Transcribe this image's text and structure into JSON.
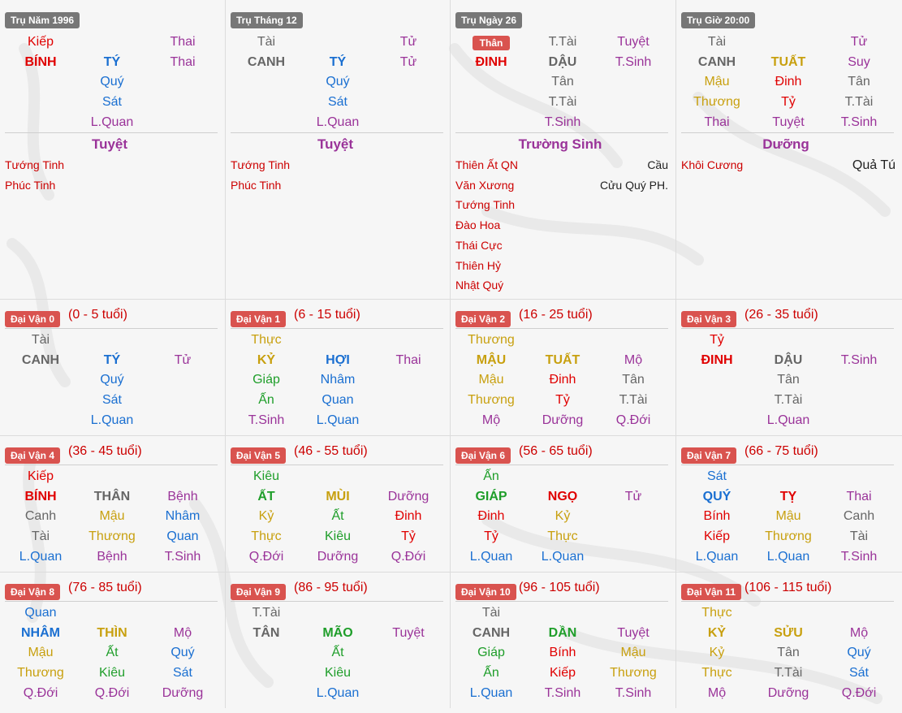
{
  "colors": {
    "red": "#e00000",
    "blue": "#1a6fd1",
    "purple": "#9a3399",
    "gray": "#666666",
    "gold": "#c8a00f",
    "green": "#1f9e2a",
    "badge_gray": "#777777",
    "badge_red": "#d9534f"
  },
  "pillars": [
    {
      "badge": "Trụ Năm 1996",
      "rows": [
        [
          "Kiếp",
          "",
          "Thai"
        ],
        [
          "BÍNH",
          "TÝ",
          "Thai"
        ],
        [
          "",
          "Quý",
          ""
        ],
        [
          "",
          "Sát",
          ""
        ],
        [
          "",
          "L.Quan",
          ""
        ]
      ],
      "colors": [
        [
          "red",
          "",
          "purple"
        ],
        [
          "red",
          "blue",
          "purple"
        ],
        [
          "",
          "blue",
          ""
        ],
        [
          "",
          "blue",
          ""
        ],
        [
          "",
          "purple",
          ""
        ]
      ],
      "truong_sinh": "Tuyệt",
      "stars_left": [
        "Tướng Tinh",
        "Phúc Tinh"
      ],
      "stars_right": []
    },
    {
      "badge": "Trụ Tháng 12",
      "rows": [
        [
          "Tài",
          "",
          "Tử"
        ],
        [
          "CANH",
          "TÝ",
          "Tử"
        ],
        [
          "",
          "Quý",
          ""
        ],
        [
          "",
          "Sát",
          ""
        ],
        [
          "",
          "L.Quan",
          ""
        ]
      ],
      "colors": [
        [
          "gray",
          "",
          "purple"
        ],
        [
          "gray",
          "blue",
          "purple"
        ],
        [
          "",
          "blue",
          ""
        ],
        [
          "",
          "blue",
          ""
        ],
        [
          "",
          "purple",
          ""
        ]
      ],
      "truong_sinh": "Tuyệt",
      "stars_left": [
        "Tướng Tinh",
        "Phúc Tinh"
      ],
      "stars_right": []
    },
    {
      "badge": "Trụ Ngày 26",
      "than_label": "Thân",
      "rows": [
        [
          "",
          "T.Tài",
          "Tuyệt"
        ],
        [
          "ĐINH",
          "DẬU",
          "T.Sinh"
        ],
        [
          "",
          "Tân",
          ""
        ],
        [
          "",
          "T.Tài",
          ""
        ],
        [
          "",
          "T.Sinh",
          ""
        ]
      ],
      "colors": [
        [
          "",
          "gray",
          "purple"
        ],
        [
          "red",
          "gray",
          "purple"
        ],
        [
          "",
          "gray",
          ""
        ],
        [
          "",
          "gray",
          ""
        ],
        [
          "",
          "purple",
          ""
        ]
      ],
      "truong_sinh": "Trường Sinh",
      "stars_left": [
        "Thiên Ất QN",
        "Văn Xương",
        "Tướng Tinh",
        "Đào Hoa",
        "Thái Cực",
        "Thiên Hỷ",
        "Nhật Quý"
      ],
      "stars_right": [
        "Cầu",
        "Cửu Quý PH."
      ]
    },
    {
      "badge": "Trụ Giờ 20:00",
      "rows": [
        [
          "Tài",
          "",
          "Tử"
        ],
        [
          "CANH",
          "TUẤT",
          "Suy"
        ],
        [
          "Mậu",
          "Đinh",
          "Tân"
        ],
        [
          "Thương",
          "Tỷ",
          "T.Tài"
        ],
        [
          "Thai",
          "Tuyệt",
          "T.Sinh"
        ]
      ],
      "colors": [
        [
          "gray",
          "",
          "purple"
        ],
        [
          "gray",
          "gold",
          "purple"
        ],
        [
          "gold",
          "red",
          "gray"
        ],
        [
          "gold",
          "red",
          "gray"
        ],
        [
          "purple",
          "purple",
          "purple"
        ]
      ],
      "truong_sinh": "Dưỡng",
      "stars_left": [
        "Khôi Cương"
      ],
      "stars_right": [
        "Quả Tú"
      ]
    }
  ],
  "dai_van": [
    {
      "badge": "Đại Vận 0",
      "range": "(0 - 5 tuổi)",
      "rows": [
        [
          "Tài",
          "",
          ""
        ],
        [
          "CANH",
          "TÝ",
          "Tử"
        ],
        [
          "",
          "Quý",
          ""
        ],
        [
          "",
          "Sát",
          ""
        ],
        [
          "",
          "L.Quan",
          ""
        ]
      ],
      "colors": [
        [
          "gray",
          "",
          ""
        ],
        [
          "gray",
          "blue",
          "purple"
        ],
        [
          "",
          "blue",
          ""
        ],
        [
          "",
          "blue",
          ""
        ],
        [
          "",
          "blue",
          ""
        ]
      ]
    },
    {
      "badge": "Đại Vận 1",
      "range": "(6 - 15 tuổi)",
      "rows": [
        [
          "Thực",
          "",
          ""
        ],
        [
          "KỶ",
          "HỢI",
          "Thai"
        ],
        [
          "Giáp",
          "Nhâm",
          ""
        ],
        [
          "Ấn",
          "Quan",
          ""
        ],
        [
          "T.Sinh",
          "L.Quan",
          ""
        ]
      ],
      "colors": [
        [
          "gold",
          "",
          ""
        ],
        [
          "gold",
          "blue",
          "purple"
        ],
        [
          "green",
          "blue",
          ""
        ],
        [
          "green",
          "blue",
          ""
        ],
        [
          "purple",
          "blue",
          ""
        ]
      ]
    },
    {
      "badge": "Đại Vận 2",
      "range": "(16 - 25 tuổi)",
      "rows": [
        [
          "Thương",
          "",
          ""
        ],
        [
          "MẬU",
          "TUẤT",
          "Mộ"
        ],
        [
          "Mậu",
          "Đinh",
          "Tân"
        ],
        [
          "Thương",
          "Tỷ",
          "T.Tài"
        ],
        [
          "Mộ",
          "Dưỡng",
          "Q.Đới"
        ]
      ],
      "colors": [
        [
          "gold",
          "",
          ""
        ],
        [
          "gold",
          "gold",
          "purple"
        ],
        [
          "gold",
          "red",
          "gray"
        ],
        [
          "gold",
          "red",
          "gray"
        ],
        [
          "purple",
          "purple",
          "purple"
        ]
      ]
    },
    {
      "badge": "Đại Vận 3",
      "range": "(26 - 35 tuổi)",
      "rows": [
        [
          "Tỷ",
          "",
          ""
        ],
        [
          "ĐINH",
          "DẬU",
          "T.Sinh"
        ],
        [
          "",
          "Tân",
          ""
        ],
        [
          "",
          "T.Tài",
          ""
        ],
        [
          "",
          "L.Quan",
          ""
        ]
      ],
      "colors": [
        [
          "red",
          "",
          ""
        ],
        [
          "red",
          "gray",
          "purple"
        ],
        [
          "",
          "gray",
          ""
        ],
        [
          "",
          "gray",
          ""
        ],
        [
          "",
          "purple",
          ""
        ]
      ]
    },
    {
      "badge": "Đại Vận 4",
      "range": "(36 - 45 tuổi)",
      "rows": [
        [
          "Kiếp",
          "",
          ""
        ],
        [
          "BÍNH",
          "THÂN",
          "Bệnh"
        ],
        [
          "Canh",
          "Mậu",
          "Nhâm"
        ],
        [
          "Tài",
          "Thương",
          "Quan"
        ],
        [
          "L.Quan",
          "Bệnh",
          "T.Sinh"
        ]
      ],
      "colors": [
        [
          "red",
          "",
          ""
        ],
        [
          "red",
          "gray",
          "purple"
        ],
        [
          "gray",
          "gold",
          "blue"
        ],
        [
          "gray",
          "gold",
          "blue"
        ],
        [
          "blue",
          "purple",
          "purple"
        ]
      ]
    },
    {
      "badge": "Đại Vận 5",
      "range": "(46 - 55 tuổi)",
      "rows": [
        [
          "Kiêu",
          "",
          ""
        ],
        [
          "ẤT",
          "MÙI",
          "Dưỡng"
        ],
        [
          "Kỷ",
          "Ất",
          "Đinh"
        ],
        [
          "Thực",
          "Kiêu",
          "Tỷ"
        ],
        [
          "Q.Đới",
          "Dưỡng",
          "Q.Đới"
        ]
      ],
      "colors": [
        [
          "green",
          "",
          ""
        ],
        [
          "green",
          "gold",
          "purple"
        ],
        [
          "gold",
          "green",
          "red"
        ],
        [
          "gold",
          "green",
          "red"
        ],
        [
          "purple",
          "purple",
          "purple"
        ]
      ]
    },
    {
      "badge": "Đại Vận 6",
      "range": "(56 - 65 tuổi)",
      "rows": [
        [
          "Ấn",
          "",
          ""
        ],
        [
          "GIÁP",
          "NGỌ",
          "Tử"
        ],
        [
          "Đinh",
          "Kỷ",
          ""
        ],
        [
          "Tỷ",
          "Thực",
          ""
        ],
        [
          "L.Quan",
          "L.Quan",
          ""
        ]
      ],
      "colors": [
        [
          "green",
          "",
          ""
        ],
        [
          "green",
          "red",
          "purple"
        ],
        [
          "red",
          "gold",
          ""
        ],
        [
          "red",
          "gold",
          ""
        ],
        [
          "blue",
          "blue",
          ""
        ]
      ]
    },
    {
      "badge": "Đại Vận 7",
      "range": "(66 - 75 tuổi)",
      "rows": [
        [
          "Sát",
          "",
          ""
        ],
        [
          "QUÝ",
          "TỴ",
          "Thai"
        ],
        [
          "Bính",
          "Mậu",
          "Canh"
        ],
        [
          "Kiếp",
          "Thương",
          "Tài"
        ],
        [
          "L.Quan",
          "L.Quan",
          "T.Sinh"
        ]
      ],
      "colors": [
        [
          "blue",
          "",
          ""
        ],
        [
          "blue",
          "red",
          "purple"
        ],
        [
          "red",
          "gold",
          "gray"
        ],
        [
          "red",
          "gold",
          "gray"
        ],
        [
          "blue",
          "blue",
          "purple"
        ]
      ]
    },
    {
      "badge": "Đại Vận 8",
      "range": "(76 - 85 tuổi)",
      "rows": [
        [
          "Quan",
          "",
          ""
        ],
        [
          "NHÂM",
          "THÌN",
          "Mộ"
        ],
        [
          "Mậu",
          "Ất",
          "Quý"
        ],
        [
          "Thương",
          "Kiêu",
          "Sát"
        ],
        [
          "Q.Đới",
          "Q.Đới",
          "Dưỡng"
        ]
      ],
      "colors": [
        [
          "blue",
          "",
          ""
        ],
        [
          "blue",
          "gold",
          "purple"
        ],
        [
          "gold",
          "green",
          "blue"
        ],
        [
          "gold",
          "green",
          "blue"
        ],
        [
          "purple",
          "purple",
          "purple"
        ]
      ]
    },
    {
      "badge": "Đại Vận 9",
      "range": "(86 - 95 tuổi)",
      "rows": [
        [
          "T.Tài",
          "",
          ""
        ],
        [
          "TÂN",
          "MÃO",
          "Tuyệt"
        ],
        [
          "",
          "Ất",
          ""
        ],
        [
          "",
          "Kiêu",
          ""
        ],
        [
          "",
          "L.Quan",
          ""
        ]
      ],
      "colors": [
        [
          "gray",
          "",
          ""
        ],
        [
          "gray",
          "green",
          "purple"
        ],
        [
          "",
          "green",
          ""
        ],
        [
          "",
          "green",
          ""
        ],
        [
          "",
          "blue",
          ""
        ]
      ]
    },
    {
      "badge": "Đại Vận 10",
      "range": "(96 - 105 tuổi)",
      "rows": [
        [
          "Tài",
          "",
          ""
        ],
        [
          "CANH",
          "DẦN",
          "Tuyệt"
        ],
        [
          "Giáp",
          "Bính",
          "Mậu"
        ],
        [
          "Ấn",
          "Kiếp",
          "Thương"
        ],
        [
          "L.Quan",
          "T.Sinh",
          "T.Sinh"
        ]
      ],
      "colors": [
        [
          "gray",
          "",
          ""
        ],
        [
          "gray",
          "green",
          "purple"
        ],
        [
          "green",
          "red",
          "gold"
        ],
        [
          "green",
          "red",
          "gold"
        ],
        [
          "blue",
          "purple",
          "purple"
        ]
      ]
    },
    {
      "badge": "Đại Vận 11",
      "range": "(106 - 115 tuổi)",
      "rows": [
        [
          "Thực",
          "",
          ""
        ],
        [
          "KỶ",
          "SỬU",
          "Mộ"
        ],
        [
          "Kỷ",
          "Tân",
          "Quý"
        ],
        [
          "Thực",
          "T.Tài",
          "Sát"
        ],
        [
          "Mộ",
          "Dưỡng",
          "Q.Đới"
        ]
      ],
      "colors": [
        [
          "gold",
          "",
          ""
        ],
        [
          "gold",
          "gold",
          "purple"
        ],
        [
          "gold",
          "gray",
          "blue"
        ],
        [
          "gold",
          "gray",
          "blue"
        ],
        [
          "purple",
          "purple",
          "purple"
        ]
      ]
    }
  ]
}
